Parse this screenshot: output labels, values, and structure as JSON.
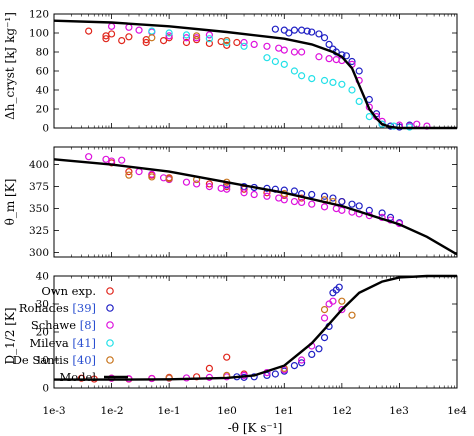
{
  "figure": {
    "xlabel": "-θ̇ [K s⁻¹]",
    "x_ticks": [
      "1e-3",
      "1e-2",
      "1e-1",
      "1e0",
      "1e1",
      "1e2",
      "1e3",
      "1e4"
    ],
    "legend": {
      "entries": [
        {
          "pre": "Own exp.",
          "ref": "",
          "post": "",
          "color": "#e0261c"
        },
        {
          "pre": "Rohades ",
          "ref": "[39]",
          "post": "",
          "color": "#1f1fc4"
        },
        {
          "pre": "Schawe ",
          "ref": "[8]",
          "post": "",
          "color": "#dd11dd"
        },
        {
          "pre": "Mileva ",
          "ref": "[41]",
          "post": "",
          "color": "#22e0e8"
        },
        {
          "pre": "De Santis ",
          "ref": "[40]",
          "post": "",
          "color": "#c8741c"
        },
        {
          "pre": "Model",
          "ref": "",
          "post": "",
          "color": "#000000"
        }
      ]
    }
  },
  "chart_data": [
    {
      "type": "scatter",
      "ylabel": "Δh_cryst [kJ kg⁻¹]",
      "x_scale": "log",
      "xlim": [
        0.001,
        10000
      ],
      "ylim": [
        0,
        120
      ],
      "y_ticks": [
        0,
        20,
        40,
        60,
        80,
        100,
        120
      ],
      "series": [
        {
          "name": "Own exp.",
          "color": "#e0261c",
          "points": [
            [
              0.004,
              102
            ],
            [
              0.008,
              97
            ],
            [
              0.008,
              94
            ],
            [
              0.01,
              99
            ],
            [
              0.015,
              92
            ],
            [
              0.02,
              96
            ],
            [
              0.04,
              90
            ],
            [
              0.04,
              93
            ],
            [
              0.08,
              92
            ],
            [
              0.1,
              95
            ],
            [
              0.2,
              90
            ],
            [
              0.3,
              93
            ],
            [
              0.5,
              89
            ],
            [
              0.8,
              91
            ],
            [
              1,
              87
            ],
            [
              1.5,
              90
            ]
          ]
        },
        {
          "name": "Rohades [39]",
          "color": "#1f1fc4",
          "points": [
            [
              7,
              104
            ],
            [
              10,
              103
            ],
            [
              12,
              100
            ],
            [
              15,
              103
            ],
            [
              20,
              103
            ],
            [
              25,
              102
            ],
            [
              30,
              101
            ],
            [
              40,
              99
            ],
            [
              50,
              95
            ],
            [
              60,
              88
            ],
            [
              70,
              83
            ],
            [
              80,
              80
            ],
            [
              100,
              77
            ],
            [
              120,
              76
            ],
            [
              150,
              70
            ],
            [
              200,
              60
            ],
            [
              300,
              30
            ],
            [
              400,
              15
            ],
            [
              500,
              4
            ],
            [
              700,
              2
            ],
            [
              1000,
              1
            ],
            [
              1500,
              3
            ]
          ]
        },
        {
          "name": "Schawe [8]",
          "color": "#dd11dd",
          "points": [
            [
              0.01,
              107
            ],
            [
              0.02,
              106
            ],
            [
              0.03,
              103
            ],
            [
              0.05,
              101
            ],
            [
              0.1,
              97
            ],
            [
              0.2,
              95
            ],
            [
              0.3,
              95
            ],
            [
              0.5,
              98
            ],
            [
              1,
              92
            ],
            [
              2,
              90
            ],
            [
              3,
              88
            ],
            [
              5,
              86
            ],
            [
              8,
              84
            ],
            [
              10,
              82
            ],
            [
              15,
              80
            ],
            [
              20,
              80
            ],
            [
              40,
              75
            ],
            [
              60,
              73
            ],
            [
              80,
              72
            ],
            [
              100,
              71
            ],
            [
              150,
              67
            ],
            [
              200,
              50
            ],
            [
              300,
              22
            ],
            [
              400,
              12
            ],
            [
              500,
              7
            ],
            [
              1000,
              3
            ],
            [
              1500,
              2
            ],
            [
              2000,
              4
            ],
            [
              3000,
              2
            ]
          ]
        },
        {
          "name": "Mileva [41]",
          "color": "#22e0e8",
          "points": [
            [
              0.05,
              102
            ],
            [
              0.1,
              100
            ],
            [
              0.2,
              98
            ],
            [
              0.5,
              94
            ],
            [
              1,
              90
            ],
            [
              2,
              86
            ],
            [
              5,
              74
            ],
            [
              7,
              70
            ],
            [
              10,
              67
            ],
            [
              15,
              60
            ],
            [
              20,
              55
            ],
            [
              30,
              52
            ],
            [
              50,
              50
            ],
            [
              70,
              48
            ],
            [
              100,
              46
            ],
            [
              150,
              40
            ],
            [
              200,
              28
            ],
            [
              300,
              12
            ],
            [
              500,
              4
            ],
            [
              800,
              2
            ],
            [
              1500,
              1
            ]
          ]
        },
        {
          "name": "De Santis [40]",
          "color": "#c8741c",
          "points": [
            [
              0.05,
              95
            ],
            [
              0.3,
              97
            ],
            [
              1,
              92
            ]
          ]
        }
      ],
      "model": [
        [
          0.001,
          113
        ],
        [
          0.01,
          111
        ],
        [
          0.1,
          107
        ],
        [
          1,
          101
        ],
        [
          10,
          94
        ],
        [
          30,
          88
        ],
        [
          70,
          80
        ],
        [
          100,
          75
        ],
        [
          150,
          63
        ],
        [
          200,
          45
        ],
        [
          300,
          20
        ],
        [
          400,
          10
        ],
        [
          500,
          4
        ],
        [
          700,
          1
        ],
        [
          1000,
          0
        ],
        [
          10000,
          0
        ]
      ]
    },
    {
      "type": "scatter",
      "ylabel": "θ_m [K]",
      "x_scale": "log",
      "xlim": [
        0.001,
        10000
      ],
      "ylim": [
        295,
        420
      ],
      "y_ticks": [
        300,
        325,
        350,
        375,
        400
      ],
      "series": [
        {
          "name": "Own exp.",
          "color": "#e0261c",
          "points": [
            [
              0.01,
              402
            ],
            [
              0.02,
              392
            ],
            [
              0.05,
              388
            ],
            [
              0.1,
              385
            ],
            [
              0.5,
              378
            ],
            [
              1,
              375
            ],
            [
              2,
              372
            ],
            [
              5,
              368
            ],
            [
              10,
              365
            ],
            [
              20,
              362
            ],
            [
              50,
              360
            ],
            [
              100,
              358
            ]
          ]
        },
        {
          "name": "Rohades [39]",
          "color": "#1f1fc4",
          "points": [
            [
              1,
              377
            ],
            [
              2,
              375
            ],
            [
              3,
              374
            ],
            [
              5,
              373
            ],
            [
              7,
              372
            ],
            [
              10,
              371
            ],
            [
              15,
              370
            ],
            [
              20,
              367
            ],
            [
              30,
              366
            ],
            [
              50,
              364
            ],
            [
              70,
              362
            ],
            [
              100,
              358
            ],
            [
              150,
              355
            ],
            [
              200,
              353
            ],
            [
              300,
              348
            ],
            [
              500,
              345
            ],
            [
              700,
              340
            ],
            [
              1000,
              334
            ]
          ]
        },
        {
          "name": "Schawe [8]",
          "color": "#dd11dd",
          "points": [
            [
              0.004,
              409
            ],
            [
              0.008,
              406
            ],
            [
              0.01,
              404
            ],
            [
              0.015,
              405
            ],
            [
              0.03,
              392
            ],
            [
              0.05,
              389
            ],
            [
              0.08,
              385
            ],
            [
              0.1,
              383
            ],
            [
              0.2,
              380
            ],
            [
              0.3,
              378
            ],
            [
              0.5,
              375
            ],
            [
              0.8,
              373
            ],
            [
              1,
              372
            ],
            [
              2,
              368
            ],
            [
              3,
              366
            ],
            [
              5,
              364
            ],
            [
              8,
              362
            ],
            [
              10,
              360
            ],
            [
              15,
              358
            ],
            [
              20,
              357
            ],
            [
              30,
              355
            ],
            [
              50,
              352
            ],
            [
              80,
              350
            ],
            [
              100,
              348
            ],
            [
              150,
              346
            ],
            [
              200,
              344
            ],
            [
              300,
              342
            ],
            [
              500,
              340
            ],
            [
              700,
              337
            ],
            [
              1000,
              333
            ]
          ]
        },
        {
          "name": "Mileva [41]",
          "color": "#22e0e8",
          "points": []
        },
        {
          "name": "De Santis [40]",
          "color": "#c8741c",
          "points": [
            [
              0.02,
              388
            ],
            [
              0.05,
              386
            ],
            [
              0.1,
              384
            ],
            [
              0.3,
              383
            ],
            [
              1,
              380
            ],
            [
              10,
              367
            ],
            [
              50,
              360
            ],
            [
              70,
              358
            ]
          ]
        }
      ],
      "model": [
        [
          0.001,
          406
        ],
        [
          0.01,
          400
        ],
        [
          0.1,
          392
        ],
        [
          1,
          380
        ],
        [
          10,
          368
        ],
        [
          100,
          353
        ],
        [
          1000,
          332
        ],
        [
          3000,
          318
        ],
        [
          10000,
          298
        ]
      ]
    },
    {
      "type": "scatter",
      "ylabel": "D_1/2 [K]",
      "x_scale": "log",
      "xlim": [
        0.001,
        10000
      ],
      "ylim": [
        0,
        40
      ],
      "y_ticks": [
        0,
        10,
        20,
        30,
        40
      ],
      "series": [
        {
          "name": "Own exp.",
          "color": "#e0261c",
          "points": [
            [
              0.003,
              3.5
            ],
            [
              0.005,
              3.2
            ],
            [
              0.01,
              3.5
            ],
            [
              0.02,
              3.2
            ],
            [
              0.05,
              3.4
            ],
            [
              0.1,
              3.8
            ],
            [
              0.3,
              4
            ],
            [
              0.5,
              7
            ],
            [
              1,
              11
            ],
            [
              2,
              5
            ]
          ]
        },
        {
          "name": "Rohades [39]",
          "color": "#1f1fc4",
          "points": [
            [
              1.5,
              4
            ],
            [
              2,
              3.8
            ],
            [
              3,
              4
            ],
            [
              5,
              4.5
            ],
            [
              7,
              5
            ],
            [
              10,
              6
            ],
            [
              15,
              8
            ],
            [
              20,
              9
            ],
            [
              30,
              12
            ],
            [
              40,
              14
            ],
            [
              50,
              18
            ],
            [
              60,
              22
            ],
            [
              70,
              34
            ],
            [
              80,
              35
            ],
            [
              90,
              36
            ]
          ]
        },
        {
          "name": "Schawe [8]",
          "color": "#dd11dd",
          "points": [
            [
              0.01,
              3.5
            ],
            [
              0.02,
              3.3
            ],
            [
              0.05,
              3.4
            ],
            [
              0.1,
              3.5
            ],
            [
              0.2,
              3.6
            ],
            [
              0.5,
              3.8
            ],
            [
              1,
              4
            ],
            [
              2,
              4.5
            ],
            [
              5,
              5.5
            ],
            [
              10,
              6.5
            ],
            [
              20,
              10
            ],
            [
              30,
              15
            ],
            [
              50,
              25
            ],
            [
              60,
              30
            ],
            [
              70,
              31
            ],
            [
              100,
              28
            ]
          ]
        },
        {
          "name": "Mileva [41]",
          "color": "#22e0e8",
          "points": []
        },
        {
          "name": "De Santis [40]",
          "color": "#c8741c",
          "points": [
            [
              0.1,
              3.6
            ],
            [
              1,
              4.5
            ],
            [
              10,
              7
            ],
            [
              50,
              28
            ],
            [
              100,
              31
            ],
            [
              150,
              26
            ]
          ]
        }
      ],
      "model": [
        [
          0.001,
          3
        ],
        [
          0.01,
          3
        ],
        [
          0.1,
          3.1
        ],
        [
          1,
          3.6
        ],
        [
          3,
          4.5
        ],
        [
          10,
          8
        ],
        [
          30,
          16
        ],
        [
          50,
          21
        ],
        [
          100,
          28
        ],
        [
          200,
          34
        ],
        [
          500,
          38
        ],
        [
          1000,
          39.5
        ],
        [
          3000,
          40
        ],
        [
          10000,
          40
        ]
      ]
    }
  ]
}
